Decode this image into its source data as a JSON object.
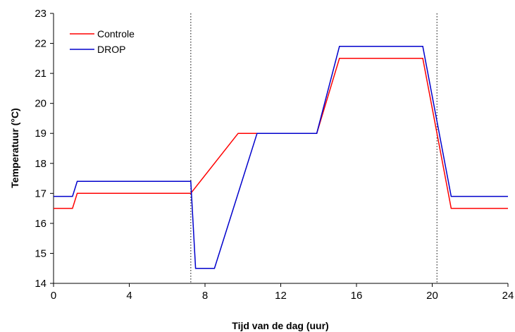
{
  "chart_data": {
    "type": "line",
    "title": "",
    "xlabel": "Tijd van de dag (uur)",
    "ylabel": "Temperatuur (°C)",
    "xlim": [
      0,
      24
    ],
    "ylim": [
      14,
      23
    ],
    "xticks": [
      0,
      4,
      8,
      12,
      16,
      20,
      24
    ],
    "yticks": [
      14,
      15,
      16,
      17,
      18,
      19,
      20,
      21,
      22,
      23
    ],
    "grid": false,
    "legend_position": "top-left",
    "vertical_reference_lines": [
      7.25,
      20.25
    ],
    "series": [
      {
        "name": "Controle",
        "color": "#ff0000",
        "x": [
          0,
          1.0,
          1.25,
          7.25,
          9.75,
          13.9,
          15.1,
          19.5,
          21.0,
          24
        ],
        "y": [
          16.5,
          16.5,
          17.0,
          17.0,
          19.0,
          19.0,
          21.5,
          21.5,
          16.5,
          16.5
        ]
      },
      {
        "name": "DROP",
        "color": "#0000cc",
        "x": [
          0,
          1.0,
          1.25,
          7.25,
          7.5,
          8.5,
          10.75,
          13.9,
          15.1,
          19.5,
          21.0,
          24
        ],
        "y": [
          16.9,
          16.9,
          17.4,
          17.4,
          14.5,
          14.5,
          19.0,
          19.0,
          21.9,
          21.9,
          16.9,
          16.9
        ]
      }
    ]
  }
}
